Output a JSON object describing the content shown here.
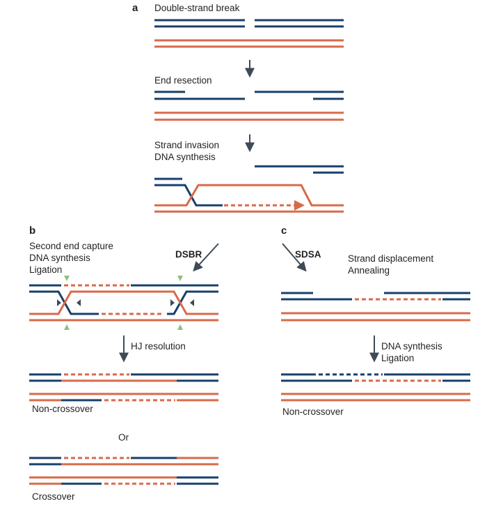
{
  "colors": {
    "blue": "#173f6b",
    "orange": "#d9694a",
    "arrow": "#3e4a56",
    "marker_green": "#8fc07c",
    "text": "#231f20"
  },
  "panel_a": {
    "label": "a",
    "step1": "Double-strand break",
    "step2": "End resection",
    "step3_line1": "Strand invasion",
    "step3_line2": "DNA synthesis"
  },
  "panel_b": {
    "label": "b",
    "step1_line1": "Second end capture",
    "step1_line2": "DNA synthesis",
    "step1_line3": "Ligation",
    "pathway": "DSBR",
    "step2": "HJ resolution",
    "outcome1": "Non-crossover",
    "or": "Or",
    "outcome2": "Crossover"
  },
  "panel_c": {
    "label": "c",
    "pathway": "SDSA",
    "step1_line1": "Strand displacement",
    "step1_line2": "Annealing",
    "step2_line1": "DNA synthesis",
    "step2_line2": "Ligation",
    "outcome": "Non-crossover"
  }
}
